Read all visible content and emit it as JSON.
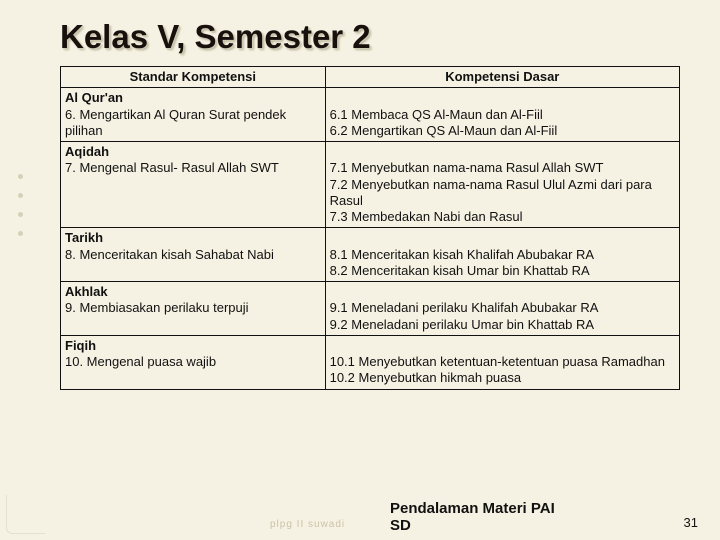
{
  "title": "Kelas V, Semester 2",
  "headers": {
    "left": "Standar Kompetensi",
    "right": "Kompetensi Dasar"
  },
  "rows": [
    {
      "left_heading": "Al Qur'an",
      "left_body": "6. Mengartikan Al Quran Surat pendek pilihan",
      "right_body": "6.1 Membaca QS Al-Maun dan Al-Fiil\n6.2 Mengartikan QS Al-Maun dan Al-Fiil"
    },
    {
      "left_heading": "Aqidah",
      "left_body": "7. Mengenal Rasul- Rasul Allah SWT",
      "right_body": "7.1  Menyebutkan nama-nama Rasul Allah SWT\n7.2  Menyebutkan nama-nama Rasul Ulul Azmi  dari para Rasul\n7.3  Membedakan Nabi dan Rasul"
    },
    {
      "left_heading": "Tarikh",
      "left_body": "8.  Menceritakan kisah Sahabat Nabi",
      "right_body": "8.1  Menceritakan kisah Khalifah Abubakar RA\n8.2  Menceritakan kisah Umar bin Khattab RA"
    },
    {
      "left_heading": "Akhlak",
      "left_body": "9.  Membiasakan perilaku terpuji",
      "right_body": "9.1  Meneladani perilaku Khalifah Abubakar RA\n9.2  Meneladani perilaku Umar bin Khattab RA"
    },
    {
      "left_heading": "Fiqih",
      "left_body": "10. Mengenal puasa wajib",
      "right_body": "10.1    Menyebutkan ketentuan-ketentuan puasa Ramadhan\n10.2    Menyebutkan hikmah puasa"
    }
  ],
  "footer_title_line1": "Pendalaman Materi PAI",
  "footer_title_line2": "SD",
  "page_number": "31",
  "watermark": "plpg II suwadi"
}
